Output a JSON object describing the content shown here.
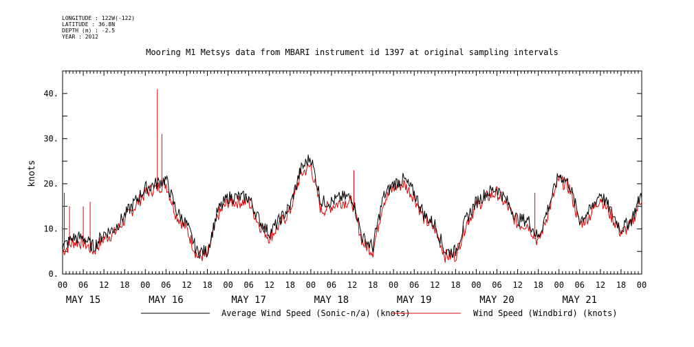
{
  "header": {
    "longitude": "LONGITUDE : 122W(-122)",
    "latitude": "LATITUDE : 36.8N",
    "depth": "DEPTH (m) : -2.5",
    "year": "YEAR : 2012"
  },
  "chart_data": {
    "type": "line",
    "title": "Mooring M1 Metsys data from MBARI instrument id 1397 at original sampling intervals",
    "ylabel": "knots",
    "xlabel": "",
    "ylim": [
      0,
      45
    ],
    "yticks": [
      0,
      10,
      20,
      30,
      40
    ],
    "ytick_labels": [
      "0.",
      "10.",
      "20.",
      "30.",
      "40."
    ],
    "xlim_hours": [
      0,
      168
    ],
    "hour_ticks": [
      "00",
      "06",
      "12",
      "18",
      "00",
      "06",
      "12",
      "18",
      "00",
      "06",
      "12",
      "18",
      "00",
      "06",
      "12",
      "18",
      "00",
      "06",
      "12",
      "18",
      "00",
      "06",
      "12",
      "18",
      "00",
      "06",
      "12",
      "18",
      "00"
    ],
    "day_labels": [
      "MAY 15",
      "MAY 16",
      "MAY 17",
      "MAY 18",
      "MAY 19",
      "MAY 20",
      "MAY 21"
    ],
    "colors": {
      "sonic": "#000000",
      "windbird": "#dd0000"
    },
    "series": [
      {
        "name": "Average Wind Speed (Sonic-n/a) (knots)",
        "x_hours": [
          0,
          3,
          6,
          9,
          12,
          15,
          18,
          21,
          24,
          27,
          30,
          33,
          36,
          39,
          42,
          45,
          48,
          51,
          54,
          57,
          60,
          63,
          66,
          69,
          72,
          75,
          78,
          81,
          84,
          87,
          90,
          93,
          96,
          99,
          102,
          105,
          108,
          111,
          114,
          117,
          120,
          123,
          126,
          129,
          132,
          135,
          138,
          141,
          144,
          147,
          150,
          153,
          156,
          159,
          162,
          165,
          168
        ],
        "values": [
          6,
          8,
          8,
          6,
          9,
          10,
          13,
          16,
          19,
          20,
          21,
          14,
          11,
          5,
          5,
          14,
          17,
          17,
          17,
          12,
          9,
          12,
          15,
          23,
          26,
          16,
          16,
          17,
          17,
          8,
          6,
          17,
          20,
          21,
          18,
          13,
          11,
          5,
          5,
          12,
          16,
          18,
          19,
          16,
          12,
          12,
          8,
          15,
          22,
          20,
          12,
          14,
          18,
          14,
          10,
          12,
          18
        ]
      },
      {
        "name": "Wind Speed (Windbird) (knots)",
        "x_hours": [
          0,
          3,
          6,
          9,
          12,
          15,
          18,
          21,
          24,
          27,
          30,
          33,
          36,
          39,
          42,
          45,
          48,
          51,
          54,
          57,
          60,
          63,
          66,
          69,
          72,
          75,
          78,
          81,
          84,
          87,
          90,
          93,
          96,
          99,
          102,
          105,
          108,
          111,
          114,
          117,
          120,
          123,
          126,
          129,
          132,
          135,
          138,
          141,
          144,
          147,
          150,
          153,
          156,
          159,
          162,
          165,
          168
        ],
        "values": [
          5,
          7,
          7,
          5,
          8,
          9,
          12,
          15,
          18,
          19,
          20,
          13,
          10,
          4,
          4,
          13,
          16,
          16,
          16,
          11,
          8,
          11,
          14,
          22,
          24,
          14,
          15,
          16,
          16,
          7,
          5,
          16,
          19,
          20,
          17,
          12,
          10,
          4,
          4,
          11,
          15,
          17,
          18,
          15,
          11,
          11,
          7,
          14,
          21,
          19,
          11,
          13,
          17,
          13,
          9,
          11,
          17
        ],
        "spikes": [
          [
            0.5,
            18
          ],
          [
            2,
            15
          ],
          [
            6,
            15
          ],
          [
            8,
            16
          ],
          [
            27.5,
            41
          ],
          [
            28.8,
            31
          ],
          [
            84.5,
            23
          ],
          [
            137,
            18
          ]
        ]
      }
    ]
  }
}
